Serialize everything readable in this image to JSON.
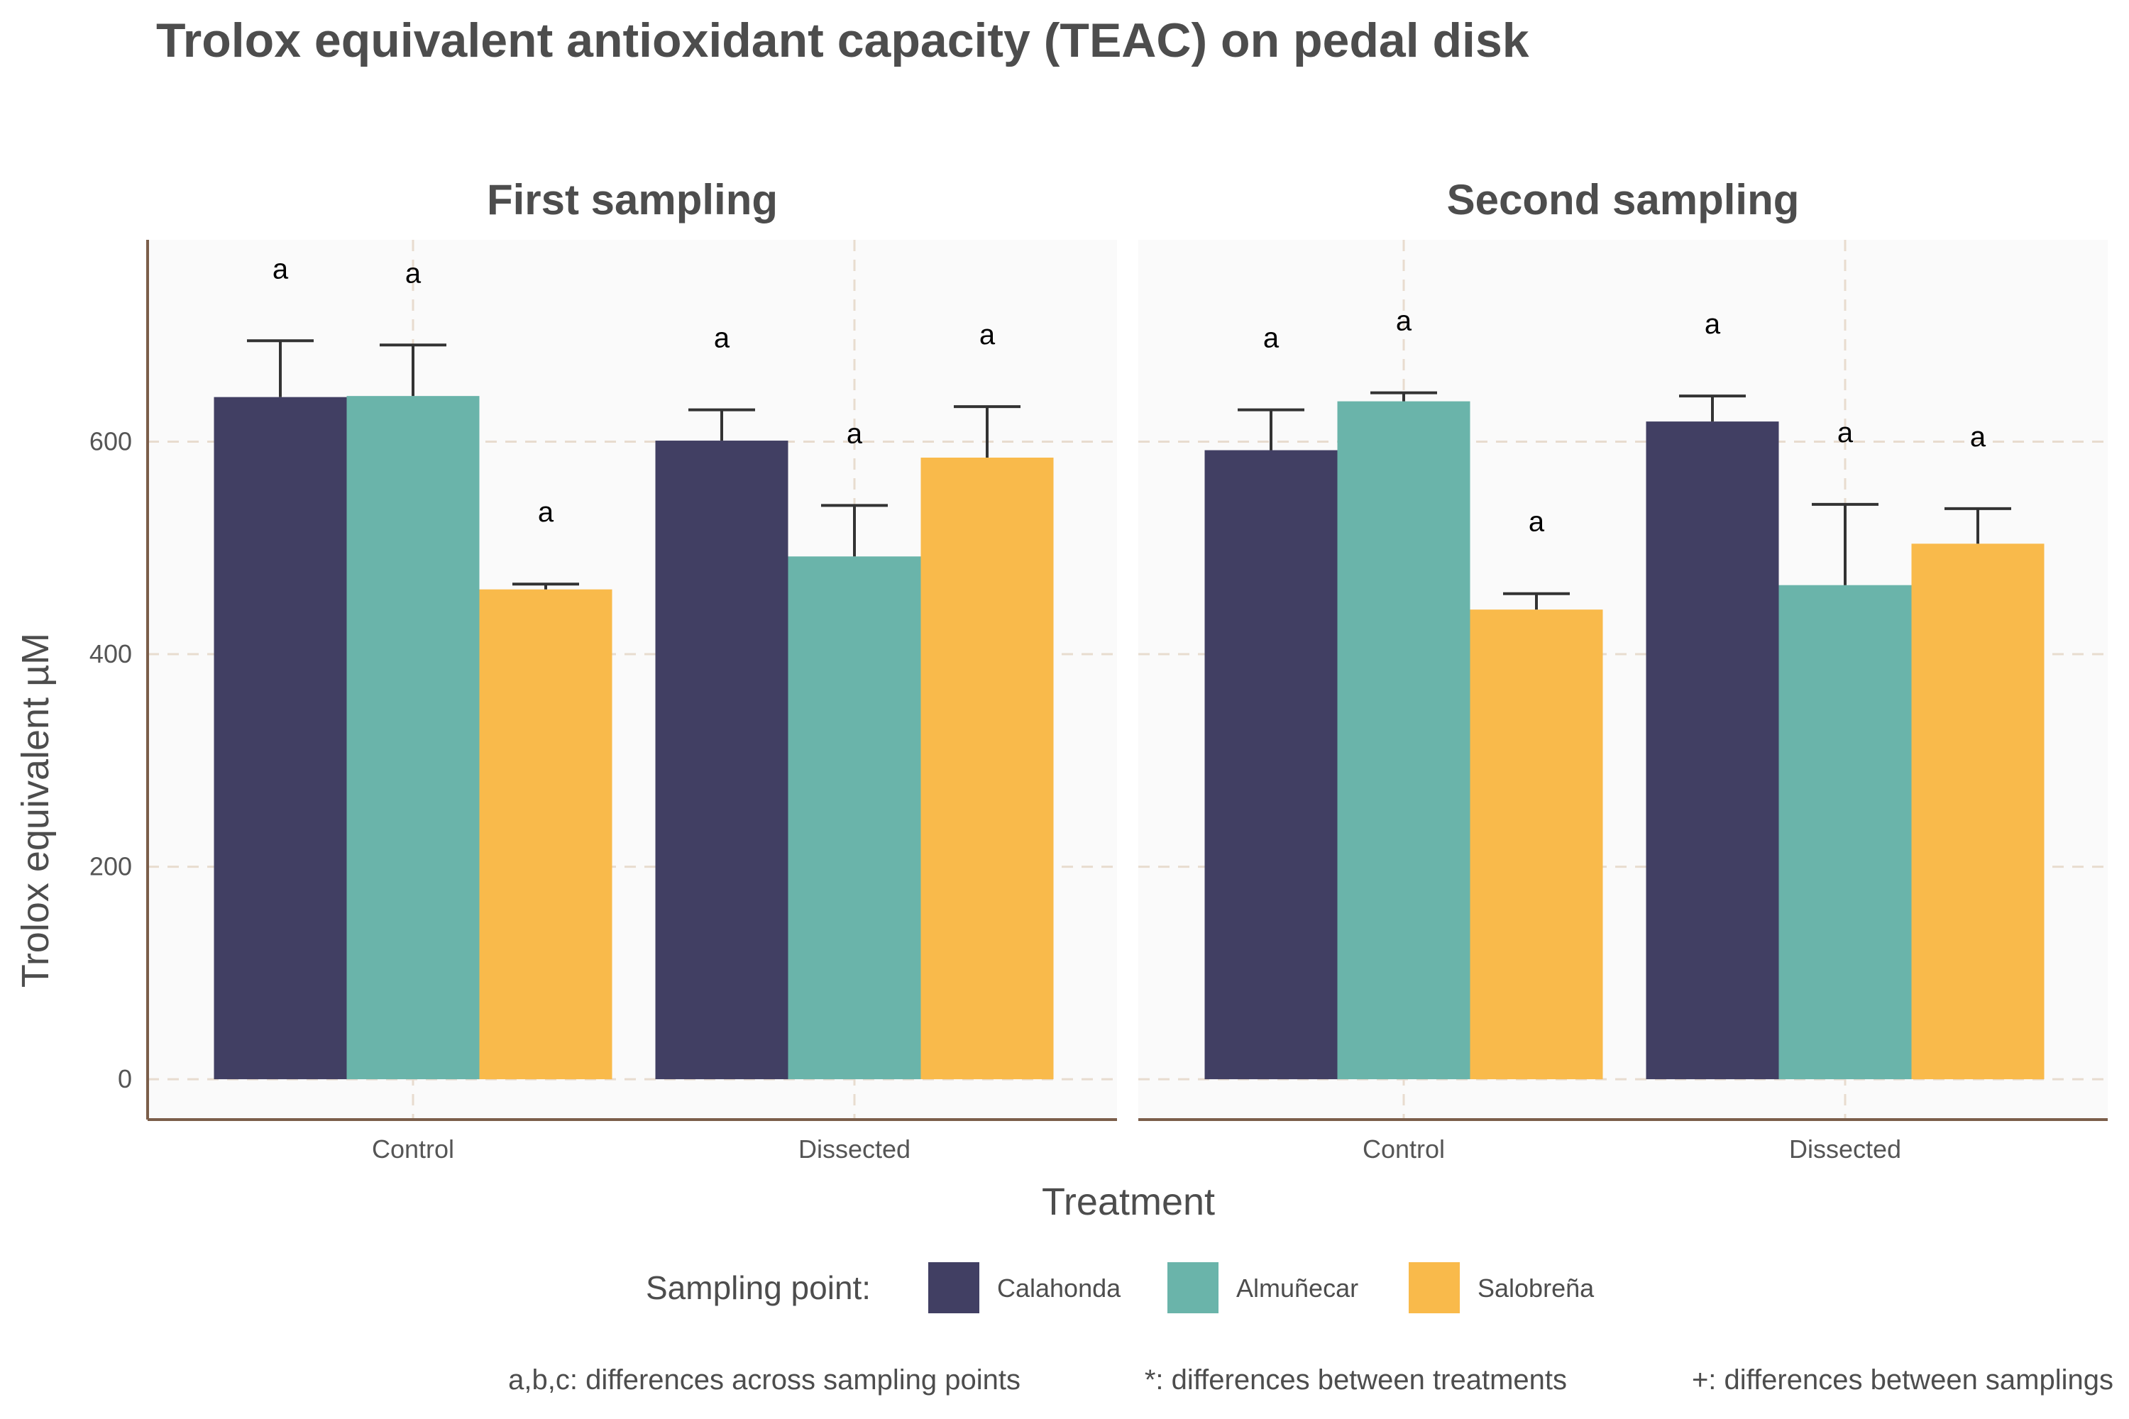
{
  "chart_data": {
    "type": "bar",
    "title": "Trolox equivalent antioxidant capacity (TEAC) on pedal disk",
    "xlabel": "Treatment",
    "ylabel": "Trolox equivalent µM",
    "ylim": [
      -38,
      790
    ],
    "yticks": [
      0,
      200,
      400,
      600
    ],
    "grid": true,
    "categories": [
      "Control",
      "Dissected"
    ],
    "legend": {
      "title": "Sampling point:",
      "position": "bottom",
      "entries": [
        {
          "name": "Calahonda",
          "color": "#413f63"
        },
        {
          "name": "Almuñecar",
          "color": "#6ab4aa"
        },
        {
          "name": "Salobreña",
          "color": "#f9ba4b"
        }
      ]
    },
    "panels": [
      {
        "label": "First sampling",
        "series": [
          {
            "name": "Calahonda",
            "values": [
              642,
              601
            ],
            "error_upper": [
              695,
              630
            ],
            "letters": [
              "a",
              "a"
            ]
          },
          {
            "name": "Almuñecar",
            "values": [
              643,
              492
            ],
            "error_upper": [
              691,
              540
            ],
            "letters": [
              "a",
              "a"
            ]
          },
          {
            "name": "Salobreña",
            "values": [
              461,
              585
            ],
            "error_upper": [
              466,
              633
            ],
            "letters": [
              "a",
              "a"
            ]
          }
        ]
      },
      {
        "label": "Second sampling",
        "series": [
          {
            "name": "Calahonda",
            "values": [
              592,
              619
            ],
            "error_upper": [
              630,
              643
            ],
            "letters": [
              "a",
              "a"
            ]
          },
          {
            "name": "Almuñecar",
            "values": [
              638,
              465
            ],
            "error_upper": [
              646,
              541
            ],
            "letters": [
              "a",
              "a"
            ]
          },
          {
            "name": "Salobreña",
            "values": [
              442,
              504
            ],
            "error_upper": [
              457,
              537
            ],
            "letters": [
              "a",
              "a"
            ]
          }
        ]
      }
    ],
    "caption": [
      "a,b,c: differences across sampling points",
      "*: differences between treatments",
      "+: differences between samplings"
    ]
  }
}
